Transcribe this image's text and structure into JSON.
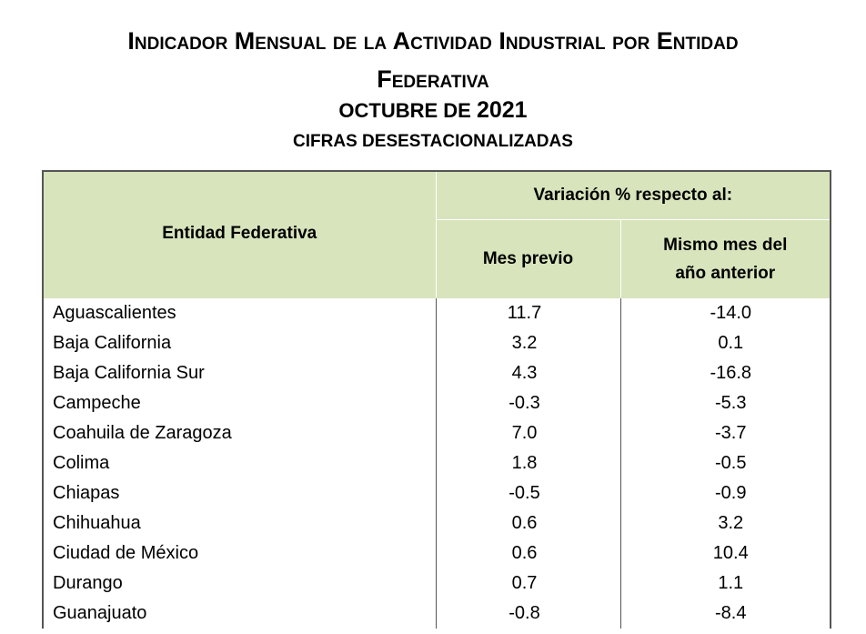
{
  "title": {
    "line1": "Indicador Mensual de la Actividad Industrial por Entidad",
    "line2": "Federativa",
    "period_month": "OCTUBRE DE ",
    "period_year": "2021",
    "subtitle": "CIFRAS DESESTACIONALIZADAS"
  },
  "table": {
    "headers": {
      "entity": "Entidad Federativa",
      "variation": "Variación % respecto al:",
      "prev_month": "Mes previo",
      "same_month_l1": "Mismo mes del",
      "same_month_l2": "año anterior"
    },
    "rows": [
      {
        "entity": "Aguascalientes",
        "prev": "11.7",
        "annual": "-14.0"
      },
      {
        "entity": "Baja California",
        "prev": "3.2",
        "annual": "0.1"
      },
      {
        "entity": "Baja California Sur",
        "prev": "4.3",
        "annual": "-16.8"
      },
      {
        "entity": "Campeche",
        "prev": "-0.3",
        "annual": "-5.3"
      },
      {
        "entity": "Coahuila de Zaragoza",
        "prev": "7.0",
        "annual": "-3.7"
      },
      {
        "entity": "Colima",
        "prev": "1.8",
        "annual": "-0.5"
      },
      {
        "entity": "Chiapas",
        "prev": "-0.5",
        "annual": "-0.9"
      },
      {
        "entity": "Chihuahua",
        "prev": "0.6",
        "annual": "3.2"
      },
      {
        "entity": "Ciudad de México",
        "prev": "0.6",
        "annual": "10.4"
      },
      {
        "entity": "Durango",
        "prev": "0.7",
        "annual": "1.1"
      },
      {
        "entity": "Guanajuato",
        "prev": "-0.8",
        "annual": "-8.4"
      }
    ]
  },
  "colors": {
    "header_bg": "#d8e4bc",
    "border": "#555555"
  }
}
